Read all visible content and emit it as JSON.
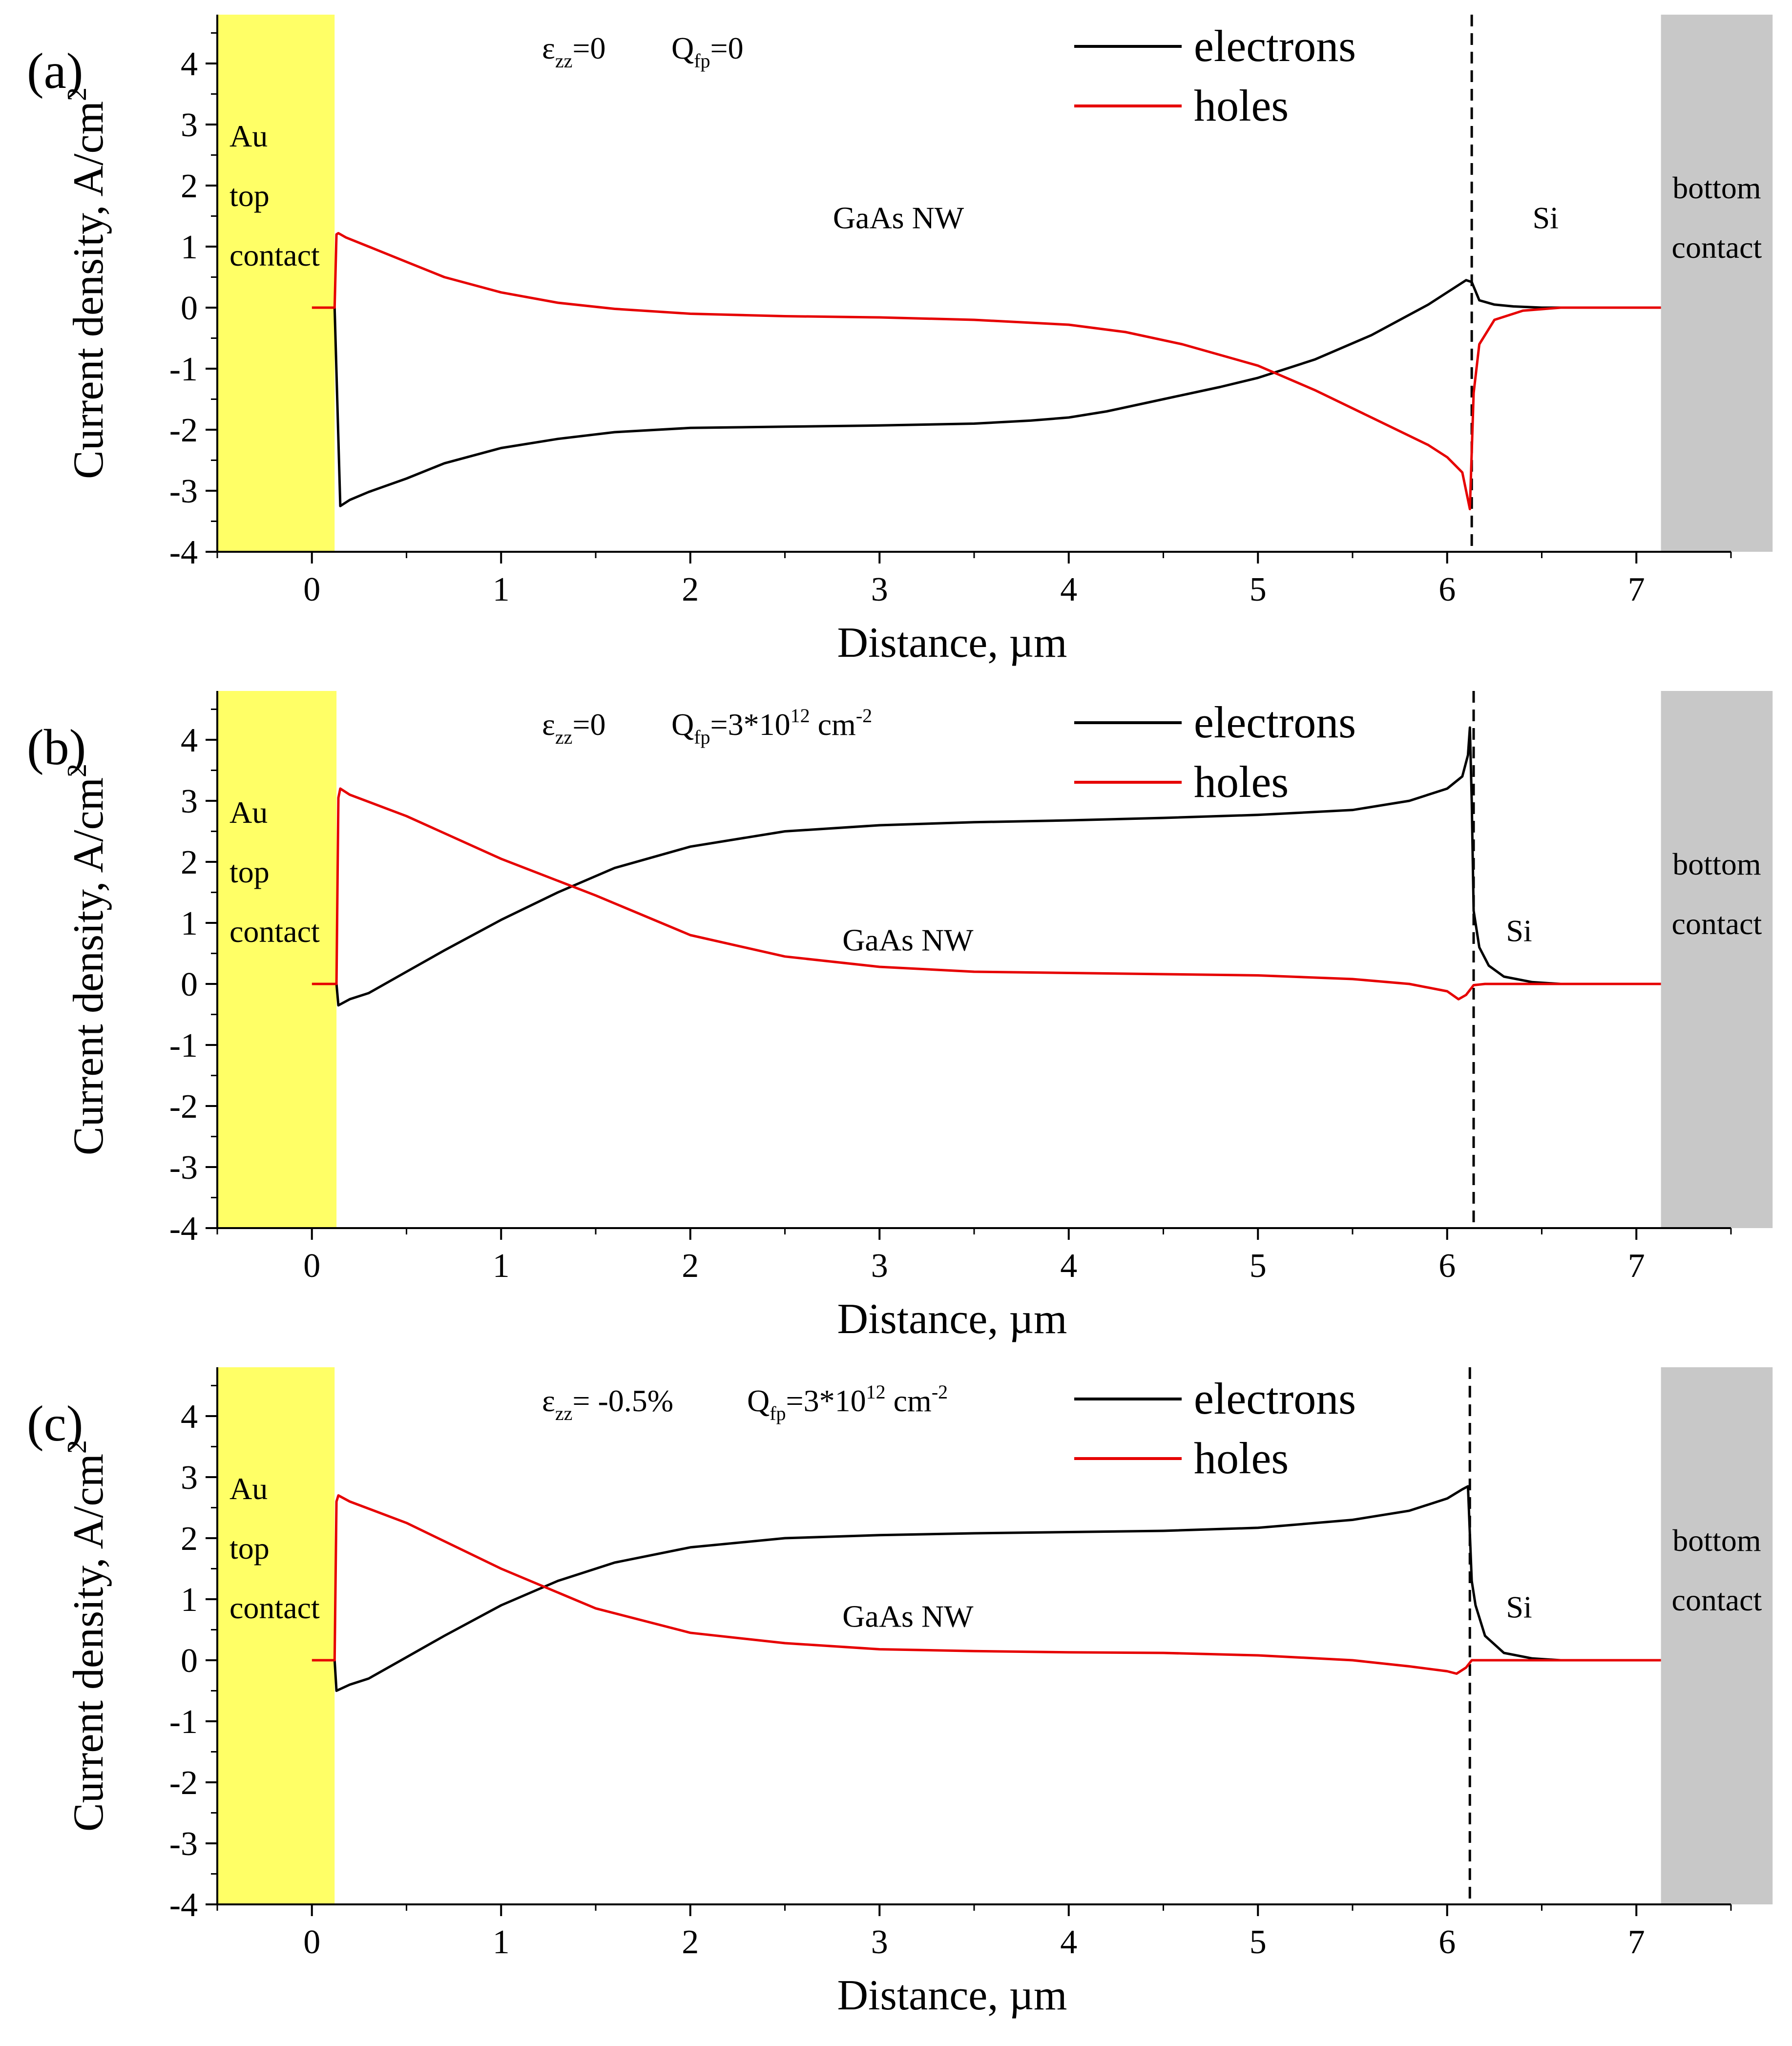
{
  "chart_data": [
    {
      "type": "line",
      "panel_label": "(a)",
      "xlabel": "Distance, µm",
      "ylabel": "Current density, A/cm",
      "ylabel_sup": "2",
      "xlim": [
        -0.5,
        7.5
      ],
      "ylim": [
        -4,
        4.8
      ],
      "xticks": [
        0,
        1,
        2,
        3,
        4,
        5,
        6,
        7
      ],
      "yticks": [
        -4,
        -3,
        -2,
        -1,
        0,
        1,
        2,
        3,
        4
      ],
      "xtick_labels": [
        "0",
        "1",
        "2",
        "3",
        "4",
        "5",
        "6",
        "7"
      ],
      "ytick_labels": [
        "-4",
        "-3",
        "-2",
        "-1",
        "0",
        "1",
        "2",
        "3",
        "4"
      ],
      "annotation": {
        "eps_sym": "ε",
        "eps_sub": "zz",
        "eps_val": "=0",
        "q_sym": "Q",
        "q_sub": "fp",
        "q_val": "=0",
        "q_sup": "",
        "q_unit": ""
      },
      "regions": {
        "top_contact": {
          "x": [
            -0.5,
            0.12
          ],
          "color": "#ffff66",
          "lines": [
            "Au",
            "top",
            "contact"
          ]
        },
        "bottom_contact": {
          "x": [
            7.13,
            7.72
          ],
          "color": "#c8c8c8",
          "lines": [
            "bottom",
            "contact"
          ]
        },
        "nw_label": "GaAs NW",
        "nw_label_pos": [
          3.1,
          1.3
        ],
        "si_label": "Si",
        "si_label_pos": [
          6.52,
          1.3
        ],
        "interface_x": 6.13
      },
      "legend": {
        "position": "top-right",
        "entries": [
          "electrons",
          "holes"
        ]
      },
      "series": [
        {
          "name": "electrons",
          "color": "#000000",
          "x": [
            0.12,
            0.15,
            0.2,
            0.3,
            0.5,
            0.7,
            1.0,
            1.3,
            1.6,
            2.0,
            2.5,
            3.0,
            3.5,
            3.8,
            4.0,
            4.2,
            4.5,
            4.8,
            5.0,
            5.3,
            5.6,
            5.9,
            6.05,
            6.1,
            6.13,
            6.17,
            6.25,
            6.35,
            6.5,
            6.7
          ],
          "y": [
            0.0,
            -3.25,
            -3.15,
            -3.02,
            -2.8,
            -2.55,
            -2.3,
            -2.15,
            -2.04,
            -1.97,
            -1.95,
            -1.93,
            -1.9,
            -1.85,
            -1.8,
            -1.7,
            -1.5,
            -1.3,
            -1.15,
            -0.85,
            -0.45,
            0.05,
            0.35,
            0.45,
            0.42,
            0.12,
            0.05,
            0.02,
            0.0,
            0.0
          ]
        },
        {
          "name": "holes",
          "color": "#e60000",
          "x": [
            0.0,
            0.12,
            0.13,
            0.14,
            0.18,
            0.3,
            0.5,
            0.7,
            1.0,
            1.3,
            1.6,
            2.0,
            2.5,
            3.0,
            3.5,
            4.0,
            4.3,
            4.6,
            5.0,
            5.3,
            5.6,
            5.9,
            6.0,
            6.08,
            6.12,
            6.14,
            6.17,
            6.25,
            6.4,
            6.6,
            7.13
          ],
          "y": [
            0.0,
            0.0,
            1.2,
            1.22,
            1.15,
            1.0,
            0.75,
            0.5,
            0.25,
            0.08,
            -0.02,
            -0.1,
            -0.14,
            -0.16,
            -0.2,
            -0.28,
            -0.4,
            -0.6,
            -0.95,
            -1.35,
            -1.8,
            -2.25,
            -2.45,
            -2.7,
            -3.3,
            -1.4,
            -0.6,
            -0.2,
            -0.05,
            0.0,
            0.0
          ]
        }
      ]
    },
    {
      "type": "line",
      "panel_label": "(b)",
      "xlabel": "Distance, µm",
      "ylabel": "Current density, A/cm",
      "ylabel_sup": "2",
      "xlim": [
        -0.5,
        7.5
      ],
      "ylim": [
        -4,
        4.8
      ],
      "xticks": [
        0,
        1,
        2,
        3,
        4,
        5,
        6,
        7
      ],
      "yticks": [
        -4,
        -3,
        -2,
        -1,
        0,
        1,
        2,
        3,
        4
      ],
      "xtick_labels": [
        "0",
        "1",
        "2",
        "3",
        "4",
        "5",
        "6",
        "7"
      ],
      "ytick_labels": [
        "-4",
        "-3",
        "-2",
        "-1",
        "0",
        "1",
        "2",
        "3",
        "4"
      ],
      "annotation": {
        "eps_sym": "ε",
        "eps_sub": "zz",
        "eps_val": "=0",
        "q_sym": "Q",
        "q_sub": "fp",
        "q_val": "=3*10",
        "q_sup": "12",
        "q_unit": "cm-2"
      },
      "regions": {
        "top_contact": {
          "x": [
            -0.5,
            0.13
          ],
          "color": "#ffff66",
          "lines": [
            "Au",
            "top",
            "contact"
          ]
        },
        "bottom_contact": {
          "x": [
            7.13,
            7.72
          ],
          "color": "#c8c8c8",
          "lines": [
            "bottom",
            "contact"
          ]
        },
        "nw_label": "GaAs NW",
        "nw_label_pos": [
          3.15,
          0.55
        ],
        "si_label": "Si",
        "si_label_pos": [
          6.38,
          0.7
        ],
        "interface_x": 6.14
      },
      "legend": {
        "position": "top-right",
        "entries": [
          "electrons",
          "holes"
        ]
      },
      "series": [
        {
          "name": "electrons",
          "color": "#000000",
          "x": [
            0.13,
            0.14,
            0.2,
            0.3,
            0.5,
            0.7,
            1.0,
            1.3,
            1.6,
            2.0,
            2.5,
            3.0,
            3.5,
            4.0,
            4.5,
            5.0,
            5.5,
            5.8,
            6.0,
            6.08,
            6.11,
            6.12,
            6.13,
            6.14,
            6.17,
            6.22,
            6.3,
            6.45,
            6.6
          ],
          "y": [
            0.0,
            -0.35,
            -0.25,
            -0.15,
            0.2,
            0.55,
            1.05,
            1.5,
            1.9,
            2.25,
            2.5,
            2.6,
            2.65,
            2.68,
            2.72,
            2.77,
            2.85,
            3.0,
            3.2,
            3.4,
            3.75,
            4.2,
            3.0,
            1.2,
            0.6,
            0.3,
            0.12,
            0.03,
            0.0
          ]
        },
        {
          "name": "holes",
          "color": "#e60000",
          "x": [
            0.0,
            0.13,
            0.14,
            0.15,
            0.2,
            0.5,
            1.0,
            1.5,
            2.0,
            2.5,
            3.0,
            3.5,
            4.0,
            4.5,
            5.0,
            5.5,
            5.8,
            6.0,
            6.06,
            6.1,
            6.14,
            6.2,
            6.4,
            7.13
          ],
          "y": [
            0.0,
            0.0,
            3.05,
            3.2,
            3.1,
            2.75,
            2.05,
            1.45,
            0.8,
            0.45,
            0.28,
            0.2,
            0.18,
            0.16,
            0.14,
            0.08,
            0.0,
            -0.12,
            -0.25,
            -0.18,
            -0.02,
            0.0,
            0.0,
            0.0
          ]
        }
      ]
    },
    {
      "type": "line",
      "panel_label": "(c)",
      "xlabel": "Distance, µm",
      "ylabel": "Current density, A/cm",
      "ylabel_sup": "2",
      "xlim": [
        -0.5,
        7.5
      ],
      "ylim": [
        -4,
        4.8
      ],
      "xticks": [
        0,
        1,
        2,
        3,
        4,
        5,
        6,
        7
      ],
      "yticks": [
        -4,
        -3,
        -2,
        -1,
        0,
        1,
        2,
        3,
        4
      ],
      "xtick_labels": [
        "0",
        "1",
        "2",
        "3",
        "4",
        "5",
        "6",
        "7"
      ],
      "ytick_labels": [
        "-4",
        "-3",
        "-2",
        "-1",
        "0",
        "1",
        "2",
        "3",
        "4"
      ],
      "annotation": {
        "eps_sym": "ε",
        "eps_sub": "zz",
        "eps_val": "= -0.5%",
        "q_sym": "Q",
        "q_sub": "fp",
        "q_val": "=3*10",
        "q_sup": "12",
        "q_unit": "cm-2"
      },
      "regions": {
        "top_contact": {
          "x": [
            -0.5,
            0.12
          ],
          "color": "#ffff66",
          "lines": [
            "Au",
            "top",
            "contact"
          ]
        },
        "bottom_contact": {
          "x": [
            7.13,
            7.72
          ],
          "color": "#c8c8c8",
          "lines": [
            "bottom",
            "contact"
          ]
        },
        "nw_label": "GaAs NW",
        "nw_label_pos": [
          3.15,
          0.55
        ],
        "si_label": "Si",
        "si_label_pos": [
          6.38,
          0.7
        ],
        "interface_x": 6.12
      },
      "legend": {
        "position": "top-right",
        "entries": [
          "electrons",
          "holes"
        ]
      },
      "series": [
        {
          "name": "electrons",
          "color": "#000000",
          "x": [
            0.12,
            0.13,
            0.2,
            0.3,
            0.5,
            0.7,
            1.0,
            1.3,
            1.6,
            2.0,
            2.5,
            3.0,
            3.5,
            4.0,
            4.5,
            5.0,
            5.5,
            5.8,
            6.0,
            6.08,
            6.11,
            6.13,
            6.15,
            6.2,
            6.3,
            6.45,
            6.6
          ],
          "y": [
            0.0,
            -0.5,
            -0.4,
            -0.3,
            0.05,
            0.4,
            0.9,
            1.3,
            1.6,
            1.85,
            2.0,
            2.05,
            2.08,
            2.1,
            2.12,
            2.17,
            2.3,
            2.45,
            2.65,
            2.8,
            2.85,
            1.3,
            0.9,
            0.4,
            0.12,
            0.03,
            0.0
          ]
        },
        {
          "name": "holes",
          "color": "#e60000",
          "x": [
            0.0,
            0.12,
            0.13,
            0.14,
            0.2,
            0.5,
            1.0,
            1.5,
            2.0,
            2.5,
            3.0,
            3.5,
            4.0,
            4.5,
            5.0,
            5.5,
            5.8,
            6.0,
            6.05,
            6.1,
            6.13,
            6.2,
            6.4,
            7.13
          ],
          "y": [
            0.0,
            0.0,
            2.6,
            2.7,
            2.6,
            2.25,
            1.5,
            0.85,
            0.45,
            0.28,
            0.18,
            0.15,
            0.13,
            0.12,
            0.08,
            0.0,
            -0.1,
            -0.18,
            -0.22,
            -0.12,
            0.0,
            0.0,
            0.0,
            0.0
          ]
        }
      ]
    }
  ]
}
